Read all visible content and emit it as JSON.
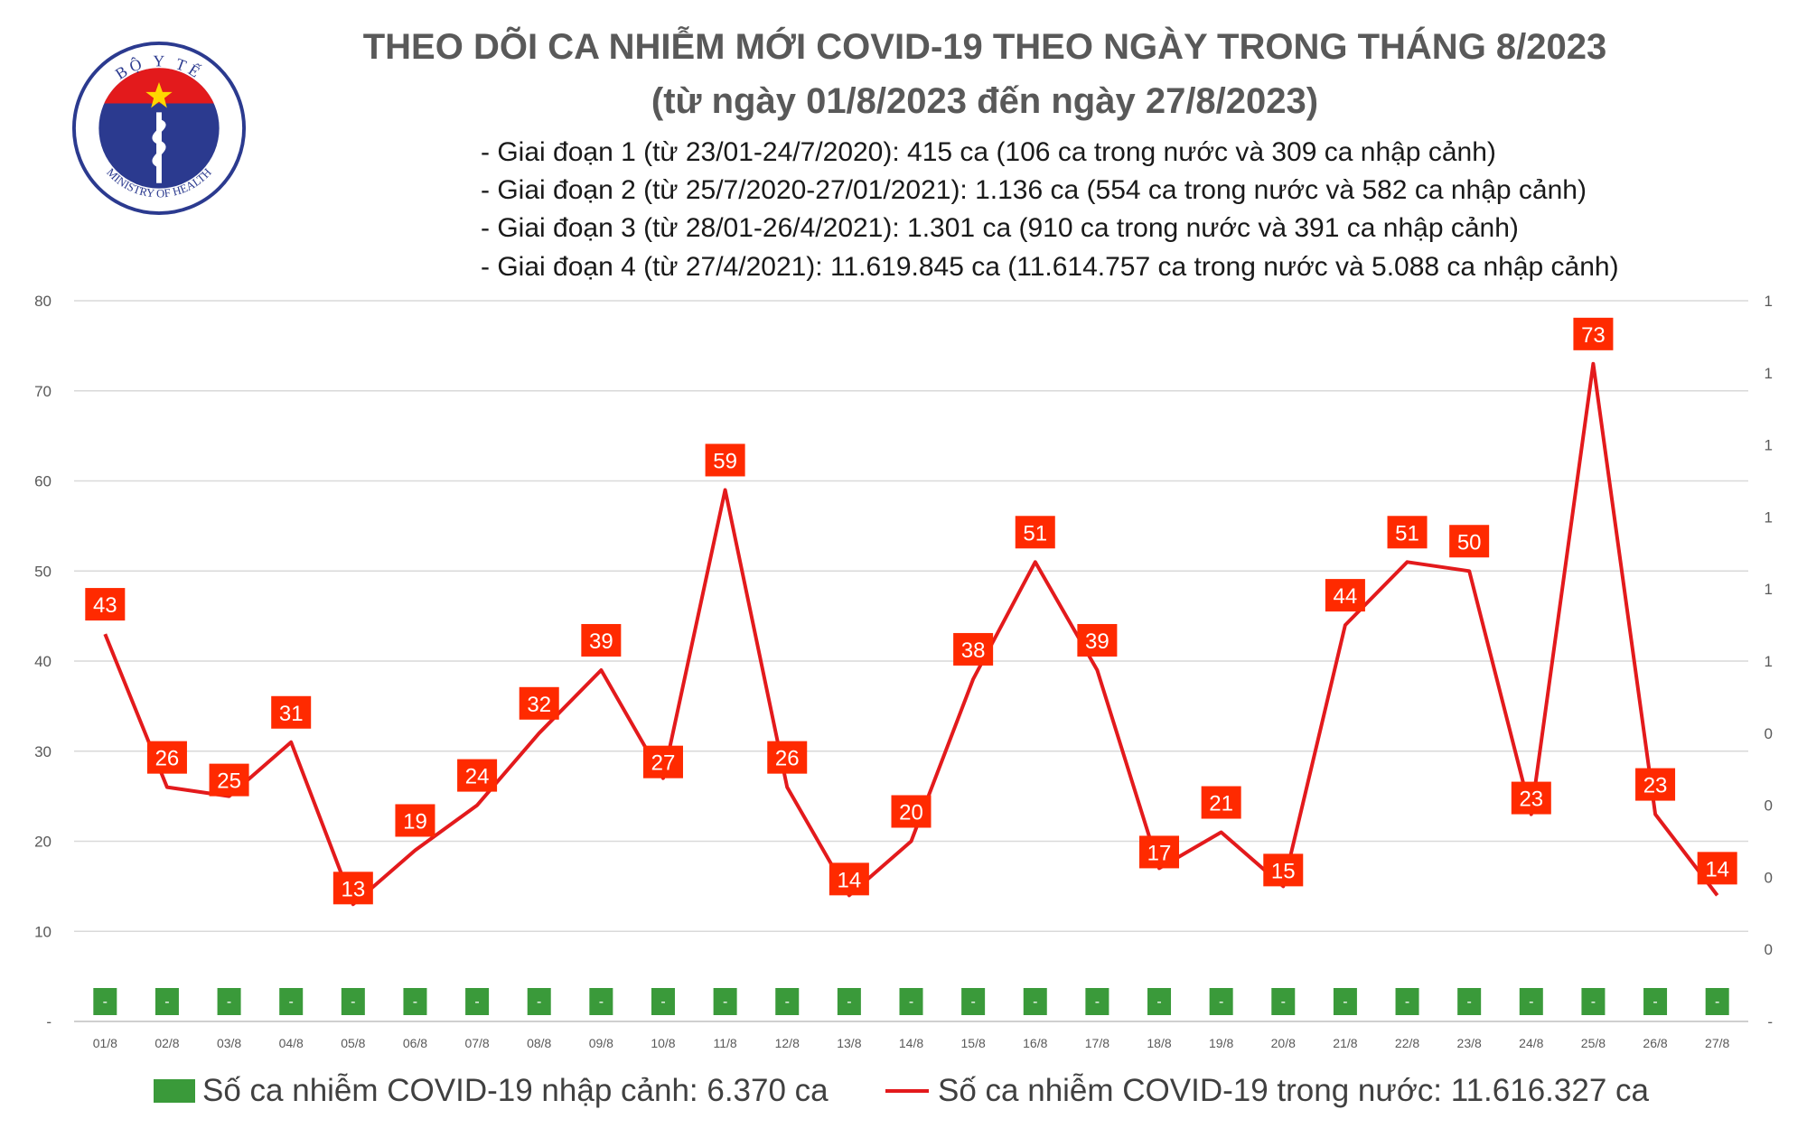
{
  "title": "THEO DÕI CA NHIỄM MỚI COVID-19 THEO NGÀY TRONG THÁNG 8/2023",
  "subtitle": "(từ ngày 01/8/2023 đến ngày 27/8/2023)",
  "notes": [
    "- Giai đoạn 1 (từ 23/01-24/7/2020): 415 ca (106 ca trong nước và 309 ca nhập cảnh)",
    "- Giai đoạn 2 (từ 25/7/2020-27/01/2021): 1.136 ca (554 ca trong nước và 582 ca nhập cảnh)",
    "- Giai đoạn 3 (từ 28/01-26/4/2021): 1.301 ca (910 ca trong nước và 391 ca nhập cảnh)",
    "- Giai đoạn 4 (từ 27/4/2021): 11.619.845 ca (11.614.757 ca trong nước và 5.088 ca nhập cảnh)"
  ],
  "logo": {
    "top_text": "BỘ Y TẾ",
    "bottom_text": "MINISTRY OF HEALTH"
  },
  "colors": {
    "line": "#e31a1c",
    "label_bg": "#ff2a00",
    "bar": "#3a9a3a",
    "grid": "#d9d9d9",
    "axis_text": "#595959"
  },
  "chart_data": {
    "type": "line",
    "categories": [
      "01/8",
      "02/8",
      "03/8",
      "04/8",
      "05/8",
      "06/8",
      "07/8",
      "08/8",
      "09/8",
      "10/8",
      "11/8",
      "12/8",
      "13/8",
      "14/8",
      "15/8",
      "16/8",
      "17/8",
      "18/8",
      "19/8",
      "20/8",
      "21/8",
      "22/8",
      "23/8",
      "24/8",
      "25/8",
      "26/8",
      "27/8"
    ],
    "series": [
      {
        "name": "Số ca nhiễm COVID-19 trong nước: 11.616.327 ca",
        "kind": "line",
        "axis": "left",
        "values": [
          43,
          26,
          25,
          31,
          13,
          19,
          24,
          32,
          39,
          27,
          59,
          26,
          14,
          20,
          38,
          51,
          39,
          17,
          21,
          15,
          44,
          51,
          50,
          23,
          73,
          23,
          14
        ]
      },
      {
        "name": "Số ca nhiễm COVID-19 nhập cảnh: 6.370 ca",
        "kind": "bar",
        "axis": "right",
        "values": [
          0,
          0,
          0,
          0,
          0,
          0,
          0,
          0,
          0,
          0,
          0,
          0,
          0,
          0,
          0,
          0,
          0,
          0,
          0,
          0,
          0,
          0,
          0,
          0,
          0,
          0,
          0
        ],
        "value_labels": [
          "-",
          "-",
          "-",
          "-",
          "-",
          "-",
          "-",
          "-",
          "-",
          "-",
          "-",
          "-",
          "-",
          "-",
          "-",
          "-",
          "-",
          "-",
          "-",
          "-",
          "-",
          "-",
          "-",
          "-",
          "-",
          "-",
          "-"
        ]
      }
    ],
    "ylim": [
      0,
      80
    ],
    "y_ticks": [
      {
        "value": 0,
        "label": "-"
      },
      {
        "value": 10,
        "label": "10"
      },
      {
        "value": 20,
        "label": "20"
      },
      {
        "value": 30,
        "label": "30"
      },
      {
        "value": 40,
        "label": "40"
      },
      {
        "value": 50,
        "label": "50"
      },
      {
        "value": 60,
        "label": "60"
      },
      {
        "value": 70,
        "label": "70"
      },
      {
        "value": 80,
        "label": "80"
      }
    ],
    "y2_tick_labels": [
      "-",
      "0",
      "0",
      "0",
      "0",
      "1",
      "1",
      "1",
      "1",
      "1",
      "1"
    ],
    "grid": true,
    "legend": "bottom"
  }
}
